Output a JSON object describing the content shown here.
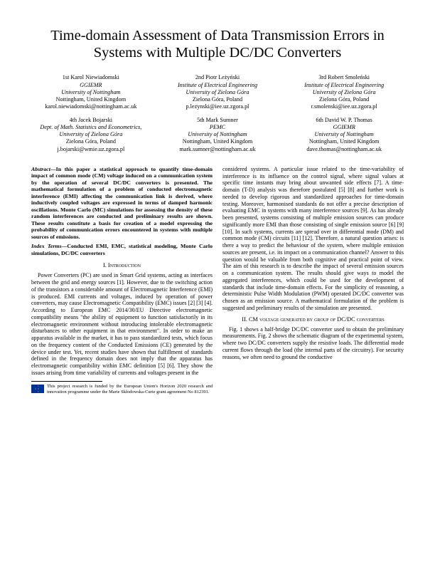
{
  "title": "Time-domain Assessment of Data Transmission Errors in Systems with Multiple DC/DC Converters",
  "authors": [
    {
      "ord": "1st",
      "name": "Karol Niewiadomski",
      "affil": "GGIEMR",
      "affil2": "University of Nottingham",
      "loc": "Nottingham, United Kingdom",
      "email": "karol.niewiadomski@nottingham.ac.uk"
    },
    {
      "ord": "2nd",
      "name": "Piotr Leżyński",
      "affil": "Institute of Electrical Engineering",
      "affil2": "University of Zielona Góra",
      "loc": "Zielona Góra, Poland",
      "email": "p.lezynski@iee.uz.zgora.pl"
    },
    {
      "ord": "3rd",
      "name": "Robert Smoleński",
      "affil": "Institute of Electrical Engineering",
      "affil2": "University of Zielona Góra",
      "loc": "Zielona Góra, Poland",
      "email": "r.smolenski@iee.uz.zgora.pl"
    },
    {
      "ord": "4th",
      "name": "Jacek Bojarski",
      "affil": "Dept. of Math. Statistics and Econometrics,",
      "affil2": "University of Zielona Góra",
      "loc": "Zielona Góra, Poland",
      "email": "j.bojarski@wmie.uz.zgora.pl"
    },
    {
      "ord": "5th",
      "name": "Mark Sumner",
      "affil": "PEMC",
      "affil2": "University of Nottingham",
      "loc": "Nottingham, United Kingdom",
      "email": "mark.sumner@nottingham.ac.uk"
    },
    {
      "ord": "6th",
      "name": "David W. P. Thomas",
      "affil": "GGIEMR",
      "affil2": "University of Nottingham",
      "loc": "Nottingham, United Kingdom",
      "email": "dave.thomas@nottingham.ac.uk"
    }
  ],
  "abstract_label": "Abstract—",
  "abstract": "In this paper a statistical approach to quantify time-domain impact of common mode (CM) voltage induced on a communication system by the operation of several DC/DC converters is presented. The mathematical formulation of a problem of conducted electromagnetic interference (EMI) affecting the communication link is derived, where inductively coupled voltages are expressed in terms of damped harmonic oscillations. Monte Carlo (MC) simulations for assessing the density of these random interferences are conducted and preliminary results are shown. These results constitute a basis for creation of a model expressing the probability of communication errors encountered in systems with multiple sources of emissions.",
  "index_label": "Index Terms—",
  "index_terms": "Conducted EMI, EMC, statistical modeling, Monte Carlo simulations, DC/DC converters",
  "section1": "I.  Introduction",
  "intro_p1": "Power Converters (PC) are used in Smart Grid systems, acting as interfaces between the grid and energy sources [1]. However, due to the switching action of the transistors a considerable amount of Electromagnetic Interference (EMI) is produced. EMI currents and voltages, induced by operation of power converters, may cause Electromagnetic Compatibility (EMC) issues [2] [3] [4]. According to European EMC 2014/30/EU Directive electromagnetic compatibility means \"the ability of equipment to function satisfactorily in its electromagnetic environment without introducing intolerable electromagnetic disturbances to other equipment in that environment\". In order to make an apparatus available in the market, it has to pass standardized tests, which focus on the frequency content of the Conducted Emissions (CE) generated by the device under test. Yet, recent studies have shown that fulfillment of standards defined in the frequency domain does not imply that the apparatus has electromagnetic compatibility within EMC definition [5] [6]. They show the issues arising from time variability of currents and voltages present in the",
  "col2_p1": "considered systems. A particular issue related to the time-variability of interference is its influence on the control signal, where signal values at specific time instants may bring about unwanted side effects [7]. A time-domain (T-D) analysis was therefore postulated [5] [8] and further work is needed to develop rigorous and standardized approaches for time-domain testing. Moreover, harmonised standards do not offer a precise description of evaluating EMC in systems with many interference sources [9]. As has already been presented, systems consisting of multiple emission sources can produce significantly more EMI than those consisting of single emission source [6] [9] [10]. In such systems, currents are spread over in differential mode (DM) and common mode (CM) circuits [11] [12]. Therefore, a natural question arises: is there a way to predict the behaviour of the system, where multiple emission sources are present, i.e. its impact on a communication channel? Answer to this question would be valuable from both cognitive and practical point of view. The aim of this research is to describe the impact of several emission sources on a communication system. The results should give ways to model the aggregated interferences, which could be used for the development of standards that include time-domain effects. For the simplicity of reasoning, a deterministic Pulse Width Modulation (PWM) operated DC/DC converter was chosen as an emission source. A mathematical formulation of the problem is suggested and preliminary results of the simulation are presented.",
  "section2": "II.  CM voltage generated by group of DC/DC converters",
  "col2_p2": "Fig. 1 shows a half-bridge DC/DC converter used to obtain the preliminary measurements. Fig. 2 shows the schematic diagram of the experimental system, where two DC/DC converters supply the resistive loads. The differential mode current flows through the load (the internal parts of the circuitry). For security reasons, we often need to ground the conductive",
  "footnote": "This project research is funded by the European Union's Horizon 2020 research and innovation programme under the Marie Skłodowska-Curie grant agreement No 812391."
}
